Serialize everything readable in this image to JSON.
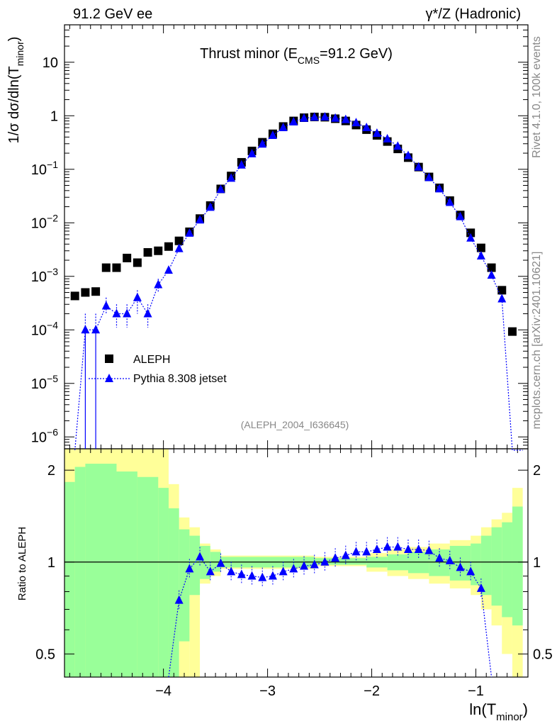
{
  "header": {
    "left": "91.2 GeV ee",
    "right": "γ*/Z (Hadronic)",
    "side_top": "Rivet 4.1.0,  100k events",
    "side_bottom": "mcplots.cern.ch [arXiv:2401.10621]"
  },
  "chart_data": {
    "type": "scatter",
    "title_main": "Thrust minor (E",
    "title_sub": "CMS",
    "title_end": "=91.2 GeV)",
    "analysis_tag": "(ALEPH_2004_I636645)",
    "ylabel_main": "1/σ  dσ/dln(T",
    "ylabel_sub": "minor",
    "ylabel_end": ")",
    "xlabel_main": "ln(T",
    "xlabel_sub": "minor",
    "xlabel_end": ")",
    "ratio_ylabel": "Ratio to ALEPH",
    "xlim": [
      -4.95,
      -0.5
    ],
    "ylim": [
      6e-07,
      50
    ],
    "ratio_ylim": [
      0.42,
      2.35
    ],
    "x_ticks": [
      {
        "v": -4,
        "label": "−4"
      },
      {
        "v": -3,
        "label": "−3"
      },
      {
        "v": -2,
        "label": "−2"
      },
      {
        "v": -1,
        "label": "−1"
      }
    ],
    "y_ticks": [
      {
        "v": 10,
        "base": "10",
        "exp": ""
      },
      {
        "v": 1,
        "base": "1",
        "exp": ""
      },
      {
        "v": 0.1,
        "base": "10",
        "exp": "−1"
      },
      {
        "v": 0.01,
        "base": "10",
        "exp": "−2"
      },
      {
        "v": 0.001,
        "base": "10",
        "exp": "−3"
      },
      {
        "v": 0.0001,
        "base": "10",
        "exp": "−4"
      },
      {
        "v": 1e-05,
        "base": "10",
        "exp": "−5"
      },
      {
        "v": 1e-06,
        "base": "10",
        "exp": "−6"
      }
    ],
    "ratio_ticks": [
      {
        "v": 2,
        "label": "2"
      },
      {
        "v": 1,
        "label": "1"
      },
      {
        "v": 0.5,
        "label": "0.5"
      }
    ],
    "series": [
      {
        "name": "ALEPH",
        "marker": "square",
        "color": "#000000",
        "x": [
          -4.85,
          -4.75,
          -4.65,
          -4.55,
          -4.45,
          -4.35,
          -4.25,
          -4.15,
          -4.05,
          -3.95,
          -3.85,
          -3.75,
          -3.65,
          -3.55,
          -3.45,
          -3.35,
          -3.25,
          -3.15,
          -3.05,
          -2.95,
          -2.85,
          -2.75,
          -2.65,
          -2.55,
          -2.45,
          -2.35,
          -2.25,
          -2.15,
          -2.05,
          -1.95,
          -1.85,
          -1.75,
          -1.65,
          -1.55,
          -1.45,
          -1.35,
          -1.25,
          -1.15,
          -1.05,
          -0.95,
          -0.85,
          -0.75,
          -0.65,
          -0.55
        ],
        "y": [
          0.00043,
          0.0005,
          0.00052,
          0.00145,
          0.00145,
          0.0022,
          0.0018,
          0.0028,
          0.003,
          0.0036,
          0.0046,
          0.0068,
          0.012,
          0.021,
          0.043,
          0.075,
          0.135,
          0.22,
          0.32,
          0.46,
          0.63,
          0.8,
          0.92,
          0.95,
          0.94,
          0.88,
          0.8,
          0.67,
          0.55,
          0.43,
          0.33,
          0.24,
          0.165,
          0.11,
          0.072,
          0.045,
          0.026,
          0.014,
          0.0065,
          0.0034,
          0.00145,
          0.00055,
          9.3e-05,
          0
        ]
      },
      {
        "name": "Pythia 8.308 jetset",
        "marker": "triangle",
        "color": "#0000ff",
        "x": [
          -4.85,
          -4.75,
          -4.65,
          -4.55,
          -4.45,
          -4.35,
          -4.25,
          -4.15,
          -4.05,
          -3.95,
          -3.85,
          -3.75,
          -3.65,
          -3.55,
          -3.45,
          -3.35,
          -3.25,
          -3.15,
          -3.05,
          -2.95,
          -2.85,
          -2.75,
          -2.65,
          -2.55,
          -2.45,
          -2.35,
          -2.25,
          -2.15,
          -2.05,
          -1.95,
          -1.85,
          -1.75,
          -1.65,
          -1.55,
          -1.45,
          -1.35,
          -1.25,
          -1.15,
          -1.05,
          -0.95,
          -0.85,
          -0.75,
          -0.65,
          -0.55
        ],
        "y": [
          0,
          0.0001,
          0.0001,
          0.00028,
          0.0002,
          0.0002,
          0.0004,
          0.0002,
          0.0007,
          0.0013,
          0.0033,
          0.0064,
          0.0113,
          0.0195,
          0.042,
          0.068,
          0.12,
          0.195,
          0.295,
          0.43,
          0.6,
          0.77,
          0.9,
          0.94,
          0.95,
          0.9,
          0.85,
          0.74,
          0.6,
          0.47,
          0.37,
          0.27,
          0.18,
          0.11,
          0.07,
          0.043,
          0.024,
          0.013,
          0.0052,
          0.0024,
          0.00105,
          0.00038,
          0,
          0
        ]
      }
    ],
    "ratio": {
      "x": [
        -3.85,
        -3.75,
        -3.65,
        -3.55,
        -3.45,
        -3.35,
        -3.25,
        -3.15,
        -3.05,
        -2.95,
        -2.85,
        -2.75,
        -2.65,
        -2.55,
        -2.45,
        -2.35,
        -2.25,
        -2.15,
        -2.05,
        -1.95,
        -1.85,
        -1.75,
        -1.65,
        -1.55,
        -1.45,
        -1.35,
        -1.25,
        -1.15,
        -1.05,
        -0.95
      ],
      "y": [
        0.75,
        0.95,
        1.04,
        0.93,
        0.99,
        0.93,
        0.91,
        0.9,
        0.89,
        0.9,
        0.93,
        0.95,
        0.97,
        0.98,
        1.0,
        1.03,
        1.05,
        1.08,
        1.08,
        1.1,
        1.12,
        1.12,
        1.1,
        1.1,
        1.09,
        1.03,
        1.01,
        0.96,
        0.93,
        0.82
      ],
      "green_band": [
        {
          "x0": -4.95,
          "x1": -4.85,
          "lo": 0.42,
          "hi": 1.83
        },
        {
          "x0": -4.85,
          "x1": -4.75,
          "lo": 0.42,
          "hi": 2.05
        },
        {
          "x0": -4.75,
          "x1": -4.45,
          "lo": 0.42,
          "hi": 2.1
        },
        {
          "x0": -4.45,
          "x1": -4.25,
          "lo": 0.42,
          "hi": 1.98
        },
        {
          "x0": -4.25,
          "x1": -4.05,
          "lo": 0.42,
          "hi": 1.9
        },
        {
          "x0": -4.05,
          "x1": -3.95,
          "lo": 0.42,
          "hi": 1.75
        },
        {
          "x0": -3.95,
          "x1": -3.85,
          "lo": 0.42,
          "hi": 1.5
        },
        {
          "x0": -3.85,
          "x1": -3.75,
          "lo": 0.55,
          "hi": 1.28
        },
        {
          "x0": -3.75,
          "x1": -3.65,
          "lo": 0.78,
          "hi": 1.22
        },
        {
          "x0": -3.65,
          "x1": -3.55,
          "lo": 0.88,
          "hi": 1.13
        },
        {
          "x0": -3.55,
          "x1": -3.45,
          "lo": 0.93,
          "hi": 1.08
        },
        {
          "x0": -3.45,
          "x1": -2.55,
          "lo": 0.96,
          "hi": 1.04
        },
        {
          "x0": -2.55,
          "x1": -2.05,
          "lo": 0.98,
          "hi": 1.03
        },
        {
          "x0": -2.05,
          "x1": -1.85,
          "lo": 0.96,
          "hi": 1.04
        },
        {
          "x0": -1.85,
          "x1": -1.65,
          "lo": 0.94,
          "hi": 1.06
        },
        {
          "x0": -1.65,
          "x1": -1.45,
          "lo": 0.92,
          "hi": 1.08
        },
        {
          "x0": -1.45,
          "x1": -1.25,
          "lo": 0.9,
          "hi": 1.1
        },
        {
          "x0": -1.25,
          "x1": -1.05,
          "lo": 0.87,
          "hi": 1.13
        },
        {
          "x0": -1.05,
          "x1": -0.95,
          "lo": 0.84,
          "hi": 1.15
        },
        {
          "x0": -0.95,
          "x1": -0.85,
          "lo": 0.78,
          "hi": 1.22
        },
        {
          "x0": -0.85,
          "x1": -0.75,
          "lo": 0.72,
          "hi": 1.3
        },
        {
          "x0": -0.75,
          "x1": -0.65,
          "lo": 0.66,
          "hi": 1.35
        },
        {
          "x0": -0.65,
          "x1": -0.55,
          "lo": 0.62,
          "hi": 1.52
        }
      ],
      "yellow_band": [
        {
          "x0": -4.95,
          "x1": -3.95,
          "lo": 0.42,
          "hi": 2.35
        },
        {
          "x0": -3.95,
          "x1": -3.85,
          "lo": 0.42,
          "hi": 1.8
        },
        {
          "x0": -3.85,
          "x1": -3.75,
          "lo": 0.42,
          "hi": 1.4
        },
        {
          "x0": -3.75,
          "x1": -3.65,
          "lo": 0.42,
          "hi": 1.3
        },
        {
          "x0": -3.65,
          "x1": -3.55,
          "lo": 0.85,
          "hi": 1.15
        },
        {
          "x0": -3.55,
          "x1": -3.45,
          "lo": 0.9,
          "hi": 1.1
        },
        {
          "x0": -3.45,
          "x1": -2.55,
          "lo": 0.95,
          "hi": 1.05
        },
        {
          "x0": -2.55,
          "x1": -2.05,
          "lo": 0.97,
          "hi": 1.04
        },
        {
          "x0": -2.05,
          "x1": -1.85,
          "lo": 0.93,
          "hi": 1.07
        },
        {
          "x0": -1.85,
          "x1": -1.65,
          "lo": 0.9,
          "hi": 1.1
        },
        {
          "x0": -1.65,
          "x1": -1.45,
          "lo": 0.88,
          "hi": 1.12
        },
        {
          "x0": -1.45,
          "x1": -1.25,
          "lo": 0.85,
          "hi": 1.15
        },
        {
          "x0": -1.25,
          "x1": -1.05,
          "lo": 0.82,
          "hi": 1.18
        },
        {
          "x0": -1.05,
          "x1": -0.95,
          "lo": 0.78,
          "hi": 1.22
        },
        {
          "x0": -0.95,
          "x1": -0.85,
          "lo": 0.7,
          "hi": 1.3
        },
        {
          "x0": -0.85,
          "x1": -0.75,
          "lo": 0.62,
          "hi": 1.38
        },
        {
          "x0": -0.75,
          "x1": -0.65,
          "lo": 0.5,
          "hi": 1.45
        },
        {
          "x0": -0.65,
          "x1": -0.55,
          "lo": 0.42,
          "hi": 1.75
        }
      ],
      "green_color": "#99ff99",
      "yellow_color": "#ffff99"
    }
  }
}
